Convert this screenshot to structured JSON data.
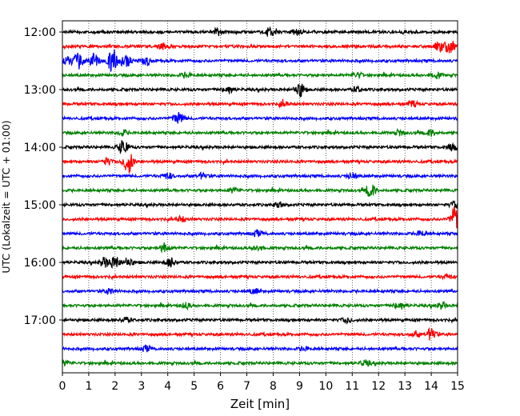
{
  "chart_data": {
    "type": "line",
    "title": "",
    "xlabel": "Zeit  [min]",
    "ylabel": "UTC (Lokalzeit = UTC + 01:00)",
    "xlim": [
      0,
      15
    ],
    "x_ticks": [
      "0",
      "1",
      "2",
      "3",
      "4",
      "5",
      "6",
      "7",
      "8",
      "9",
      "10",
      "11",
      "12",
      "13",
      "14",
      "15"
    ],
    "y_ticks": [
      "12:00",
      "13:00",
      "14:00",
      "15:00",
      "16:00",
      "17:00"
    ],
    "grid": "vertical dotted",
    "colors": [
      "#000000",
      "#ff0000",
      "#0000ff",
      "#008000"
    ],
    "traces": [
      {
        "time": "12:00",
        "color": "#000000",
        "events": [
          [
            5.9,
            0.4
          ],
          [
            7.8,
            0.35
          ],
          [
            8.0,
            0.45
          ],
          [
            8.9,
            0.35
          ]
        ]
      },
      {
        "time": "12:15",
        "color": "#ff0000",
        "events": [
          [
            3.8,
            0.4
          ],
          [
            14.7,
            0.9
          ],
          [
            14.3,
            0.6
          ]
        ]
      },
      {
        "time": "12:30",
        "color": "#0000ff",
        "events": [
          [
            0.2,
            0.5
          ],
          [
            0.6,
            1.0
          ],
          [
            1.2,
            1.0
          ],
          [
            1.9,
            1.6
          ],
          [
            2.4,
            1.0
          ],
          [
            3.2,
            0.6
          ]
        ]
      },
      {
        "time": "12:45",
        "color": "#008000",
        "events": [
          [
            4.7,
            0.35
          ],
          [
            11.2,
            0.35
          ],
          [
            14.2,
            0.35
          ]
        ]
      },
      {
        "time": "13:00",
        "color": "#000000",
        "events": [
          [
            6.3,
            0.6
          ],
          [
            9.0,
            1.0
          ],
          [
            11.2,
            0.35
          ]
        ]
      },
      {
        "time": "13:15",
        "color": "#ff0000",
        "events": [
          [
            8.4,
            0.35
          ],
          [
            13.3,
            0.35
          ]
        ]
      },
      {
        "time": "13:30",
        "color": "#0000ff",
        "events": [
          [
            4.4,
            0.9
          ]
        ]
      },
      {
        "time": "13:45",
        "color": "#008000",
        "events": [
          [
            2.3,
            0.35
          ],
          [
            12.8,
            0.35
          ],
          [
            14.0,
            0.4
          ]
        ]
      },
      {
        "time": "14:00",
        "color": "#000000",
        "events": [
          [
            2.3,
            1.0
          ],
          [
            14.8,
            0.4
          ]
        ]
      },
      {
        "time": "14:15",
        "color": "#ff0000",
        "events": [
          [
            2.5,
            1.6
          ],
          [
            1.7,
            0.4
          ]
        ]
      },
      {
        "time": "14:30",
        "color": "#0000ff",
        "events": [
          [
            4.0,
            0.4
          ],
          [
            5.3,
            0.35
          ],
          [
            11.0,
            0.35
          ]
        ]
      },
      {
        "time": "14:45",
        "color": "#008000",
        "events": [
          [
            11.7,
            0.9
          ],
          [
            6.5,
            0.35
          ]
        ]
      },
      {
        "time": "15:00",
        "color": "#000000",
        "events": [
          [
            8.2,
            0.35
          ],
          [
            14.9,
            0.4
          ]
        ]
      },
      {
        "time": "15:15",
        "color": "#ff0000",
        "events": [
          [
            4.5,
            0.35
          ],
          [
            14.9,
            1.6
          ]
        ]
      },
      {
        "time": "15:30",
        "color": "#0000ff",
        "events": [
          [
            7.4,
            0.35
          ],
          [
            13.6,
            0.4
          ]
        ]
      },
      {
        "time": "15:45",
        "color": "#008000",
        "events": [
          [
            3.9,
            0.6
          ],
          [
            7.4,
            0.35
          ]
        ]
      },
      {
        "time": "16:00",
        "color": "#000000",
        "events": [
          [
            1.6,
            0.6
          ],
          [
            2.0,
            0.8
          ],
          [
            2.5,
            0.6
          ],
          [
            4.1,
            0.6
          ]
        ]
      },
      {
        "time": "16:15",
        "color": "#ff0000",
        "events": [
          [
            14.6,
            0.3
          ]
        ]
      },
      {
        "time": "16:30",
        "color": "#0000ff",
        "events": [
          [
            1.8,
            0.35
          ],
          [
            7.3,
            0.3
          ]
        ]
      },
      {
        "time": "16:45",
        "color": "#008000",
        "events": [
          [
            4.7,
            0.35
          ],
          [
            12.8,
            0.6
          ],
          [
            14.4,
            0.4
          ]
        ]
      },
      {
        "time": "17:00",
        "color": "#000000",
        "events": [
          [
            2.4,
            0.35
          ],
          [
            10.8,
            0.35
          ]
        ]
      },
      {
        "time": "17:15",
        "color": "#ff0000",
        "events": [
          [
            14.0,
            0.8
          ],
          [
            13.4,
            0.4
          ]
        ]
      },
      {
        "time": "17:30",
        "color": "#0000ff",
        "events": [
          [
            3.2,
            0.35
          ],
          [
            9.2,
            0.3
          ]
        ]
      },
      {
        "time": "17:45",
        "color": "#008000",
        "events": [
          [
            11.5,
            0.35
          ],
          [
            0.1,
            0.35
          ]
        ]
      }
    ]
  }
}
